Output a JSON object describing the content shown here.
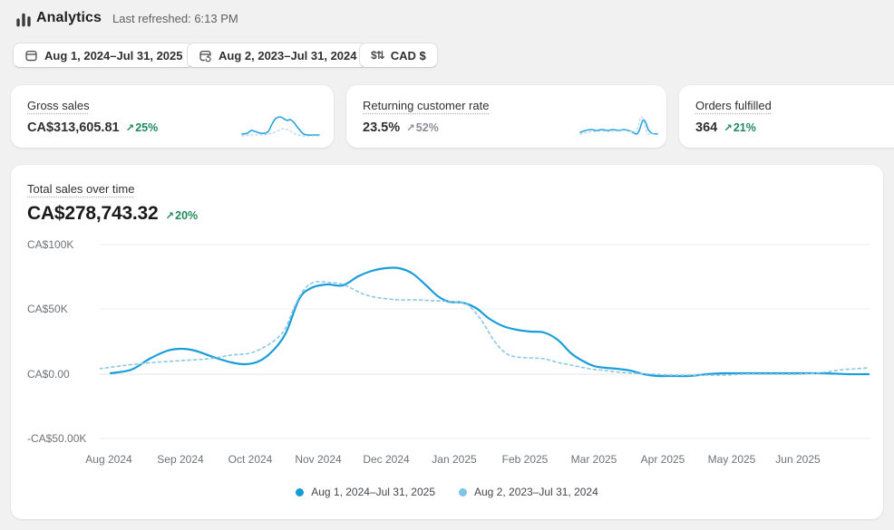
{
  "header": {
    "title": "Analytics",
    "last_refreshed": "Last refreshed: 6:13 PM"
  },
  "toolbar": {
    "date_range": {
      "label": "Aug 1, 2024–Jul 31, 2025"
    },
    "comparison": {
      "label": "Aug 2, 2023–Jul 31, 2024"
    },
    "currency": {
      "label": "CAD $",
      "icon_glyph": "$⇅"
    }
  },
  "glyphs": {
    "trend_up": "↗"
  },
  "metric_cards": [
    {
      "title": "Gross sales",
      "value": "CA$313,605.81",
      "delta": "25%",
      "trend": "up",
      "delta_style": "positive"
    },
    {
      "title": "Returning customer rate",
      "value": "23.5%",
      "delta": "52%",
      "trend": "up",
      "delta_style": "neutral"
    },
    {
      "title": "Orders fulfilled",
      "value": "364",
      "delta": "21%",
      "trend": "up",
      "delta_style": "positive"
    }
  ],
  "main_chart": {
    "title": "Total sales over time",
    "value": "CA$278,743.32",
    "delta": "20%",
    "y_ticks": [
      "CA$100K",
      "CA$50K",
      "CA$0.00",
      "-CA$50.00K"
    ],
    "x_ticks": [
      "Aug 2024",
      "Sep 2024",
      "Oct 2024",
      "Nov 2024",
      "Dec 2024",
      "Jan 2025",
      "Feb 2025",
      "Mar 2025",
      "Apr 2025",
      "May 2025",
      "Jun 2025"
    ],
    "legend": [
      {
        "label": "Aug 1, 2024–Jul 31, 2025",
        "color": "#149bd7"
      },
      {
        "label": "Aug 2, 2023–Jul 31, 2024",
        "color": "#7cc6e8"
      }
    ]
  },
  "colors": {
    "accent_blue": "#1b9dd9",
    "comparison_blue": "#8cc7e4",
    "positive_green": "#208a5b",
    "neutral_gray": "#8a8f98",
    "page_bg": "#f1f1f1",
    "card_bg": "#ffffff",
    "grid_line": "#ececec",
    "text_primary": "#303030",
    "text_secondary": "#616161"
  },
  "chart_data": [
    {
      "id": "total-sales",
      "type": "line",
      "title": "Total sales over time",
      "total_label": "CA$278,743.32",
      "change_pct": 20,
      "categories": [
        "Aug 2024",
        "Sep 2024",
        "Oct 2024",
        "Nov 2024",
        "Dec 2024",
        "Jan 2025",
        "Feb 2025",
        "Mar 2025",
        "Apr 2025",
        "May 2025",
        "Jun 2025"
      ],
      "ylim": [
        -50000,
        100000
      ],
      "grid": "horizontal",
      "legend_position": "bottom",
      "series": [
        {
          "name": "Aug 1, 2024–Jul 31, 2025",
          "style": "solid",
          "approx_values_cad": [
            1400,
            19500,
            7500,
            69000,
            82000,
            55000,
            33500,
            6000,
            -1000,
            700,
            700
          ]
        },
        {
          "name": "Aug 2, 2023–Jul 31, 2024",
          "style": "dashed",
          "approx_values_cad": [
            5600,
            10500,
            16000,
            71000,
            58000,
            56000,
            12600,
            4200,
            -500,
            -500,
            700
          ]
        }
      ],
      "lines": [
        {
          "name": "current",
          "color": "#1b9dd9",
          "width": 2.2,
          "dash": null,
          "points": [
            [
              12,
              150
            ],
            [
              35,
              146
            ],
            [
              55,
              134
            ],
            [
              75,
              125
            ],
            [
              90,
              123
            ],
            [
              105,
              125
            ],
            [
              125,
              132
            ],
            [
              145,
              138
            ],
            [
              160,
              140
            ],
            [
              175,
              137
            ],
            [
              190,
              126
            ],
            [
              205,
              106
            ],
            [
              220,
              68
            ],
            [
              233,
              56
            ],
            [
              250,
              52
            ],
            [
              268,
              53
            ],
            [
              285,
              43
            ],
            [
              300,
              37
            ],
            [
              315,
              34
            ],
            [
              330,
              34
            ],
            [
              345,
              40
            ],
            [
              360,
              53
            ],
            [
              373,
              65
            ],
            [
              385,
              71
            ],
            [
              400,
              72
            ],
            [
              415,
              78
            ],
            [
              430,
              90
            ],
            [
              445,
              98
            ],
            [
              460,
              102
            ],
            [
              475,
              104
            ],
            [
              490,
              105
            ],
            [
              505,
              113
            ],
            [
              520,
              128
            ],
            [
              532,
              136
            ],
            [
              545,
              142
            ],
            [
              558,
              144
            ],
            [
              570,
              145
            ],
            [
              585,
              147
            ],
            [
              600,
              151
            ],
            [
              615,
              153
            ],
            [
              630,
              153
            ],
            [
              650,
              153
            ],
            [
              670,
              151
            ],
            [
              690,
              150
            ],
            [
              710,
              150
            ],
            [
              740,
              150
            ],
            [
              770,
              150
            ],
            [
              800,
              150
            ],
            [
              825,
              151
            ],
            [
              848,
              151
            ]
          ]
        },
        {
          "name": "previous",
          "color": "#8cc7e4",
          "width": 1.6,
          "dash": "3 3.5",
          "points": [
            [
              0,
              145
            ],
            [
              30,
              141
            ],
            [
              60,
              138
            ],
            [
              90,
              136
            ],
            [
              120,
              134
            ],
            [
              145,
              130
            ],
            [
              165,
              128
            ],
            [
              180,
              122
            ],
            [
              195,
              112
            ],
            [
              205,
              100
            ],
            [
              215,
              76
            ],
            [
              225,
              58
            ],
            [
              235,
              50
            ],
            [
              245,
              49
            ],
            [
              255,
              50
            ],
            [
              265,
              51
            ],
            [
              275,
              55
            ],
            [
              285,
              60
            ],
            [
              295,
              64
            ],
            [
              310,
              67
            ],
            [
              330,
              69
            ],
            [
              350,
              69
            ],
            [
              370,
              70
            ],
            [
              390,
              71
            ],
            [
              405,
              74
            ],
            [
              420,
              90
            ],
            [
              435,
              114
            ],
            [
              448,
              128
            ],
            [
              460,
              132
            ],
            [
              475,
              133
            ],
            [
              490,
              134
            ],
            [
              505,
              138
            ],
            [
              520,
              141
            ],
            [
              540,
              145
            ],
            [
              557,
              147
            ],
            [
              575,
              149
            ],
            [
              590,
              150
            ],
            [
              610,
              151
            ],
            [
              630,
              152
            ],
            [
              650,
              152
            ],
            [
              670,
              152
            ],
            [
              690,
              152
            ],
            [
              710,
              151
            ],
            [
              730,
              151
            ],
            [
              750,
              151
            ],
            [
              770,
              151
            ],
            [
              790,
              150
            ],
            [
              805,
              148
            ],
            [
              820,
              146
            ],
            [
              835,
              145
            ],
            [
              848,
              144
            ]
          ]
        }
      ]
    },
    {
      "id": "gross-sales-spark",
      "type": "line",
      "title": "Gross sales sparkline",
      "lines": [
        {
          "name": "current",
          "color": "#2ba3dc",
          "width": 1.6,
          "dash": null,
          "points": [
            [
              2,
              24
            ],
            [
              8,
              23
            ],
            [
              12,
              20
            ],
            [
              16,
              21
            ],
            [
              22,
              23
            ],
            [
              27,
              23
            ],
            [
              31,
              21
            ],
            [
              35,
              13
            ],
            [
              39,
              7
            ],
            [
              44,
              5
            ],
            [
              48,
              7
            ],
            [
              52,
              9
            ],
            [
              55,
              8
            ],
            [
              59,
              11
            ],
            [
              62,
              15
            ],
            [
              66,
              20
            ],
            [
              70,
              24
            ],
            [
              75,
              25
            ],
            [
              81,
              25
            ],
            [
              87,
              25
            ]
          ]
        },
        {
          "name": "previous",
          "color": "#aed6ec",
          "width": 1.2,
          "dash": "2 3",
          "points": [
            [
              2,
              26
            ],
            [
              12,
              25
            ],
            [
              22,
              25
            ],
            [
              32,
              24
            ],
            [
              40,
              21
            ],
            [
              47,
              18
            ],
            [
              54,
              20
            ],
            [
              61,
              24
            ],
            [
              70,
              26
            ],
            [
              80,
              26
            ],
            [
              87,
              26
            ]
          ]
        }
      ]
    },
    {
      "id": "returning-rate-spark",
      "type": "line",
      "title": "Returning customer rate sparkline",
      "lines": [
        {
          "name": "current",
          "color": "#2ba3dc",
          "width": 1.6,
          "dash": null,
          "points": [
            [
              2,
              22
            ],
            [
              8,
              20
            ],
            [
              14,
              19
            ],
            [
              20,
              20
            ],
            [
              26,
              19
            ],
            [
              32,
              20
            ],
            [
              38,
              19
            ],
            [
              44,
              20
            ],
            [
              50,
              19
            ],
            [
              55,
              20
            ],
            [
              60,
              22
            ],
            [
              64,
              24
            ],
            [
              67,
              20
            ],
            [
              71,
              9
            ],
            [
              74,
              11
            ],
            [
              77,
              19
            ],
            [
              81,
              23
            ],
            [
              87,
              24
            ]
          ]
        },
        {
          "name": "previous",
          "color": "#aed6ec",
          "width": 1.2,
          "dash": "2 3",
          "points": [
            [
              2,
              24
            ],
            [
              10,
              22
            ],
            [
              20,
              21
            ],
            [
              30,
              21
            ],
            [
              40,
              21
            ],
            [
              50,
              20
            ],
            [
              57,
              21
            ],
            [
              62,
              22
            ],
            [
              66,
              15
            ],
            [
              69,
              5
            ],
            [
              72,
              10
            ],
            [
              76,
              23
            ],
            [
              81,
              23
            ],
            [
              87,
              23
            ]
          ]
        }
      ]
    }
  ]
}
